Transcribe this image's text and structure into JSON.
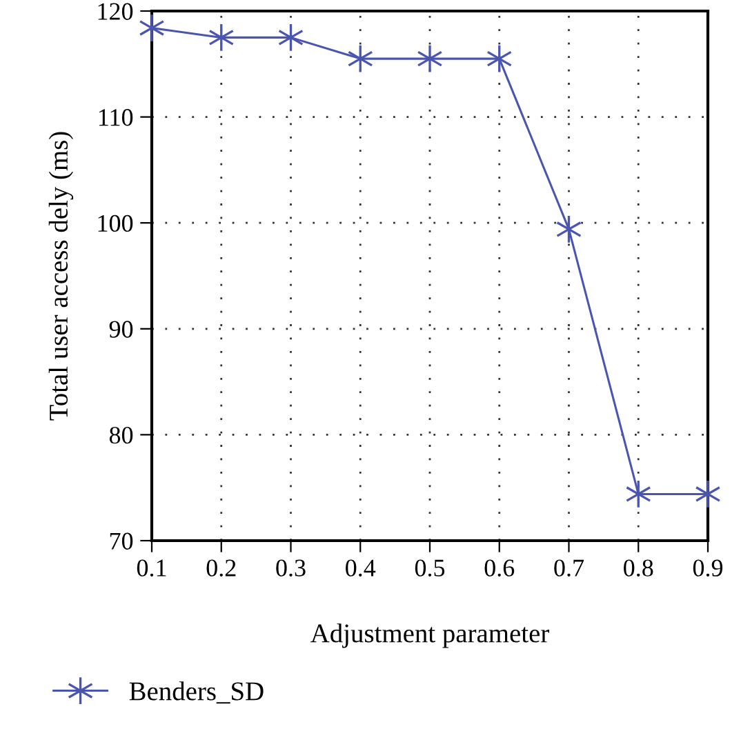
{
  "chart_data": {
    "type": "line",
    "xlabel": "Adjustment parameter",
    "ylabel": "Total user access dely (ms)",
    "x": [
      0.1,
      0.2,
      0.3,
      0.4,
      0.5,
      0.6,
      0.7,
      0.8,
      0.9
    ],
    "series": [
      {
        "name": "Benders_SD",
        "color": "#4a55b0",
        "values": [
          118.4,
          117.5,
          117.5,
          115.5,
          115.5,
          115.5,
          99.4,
          74.4,
          74.4
        ]
      }
    ],
    "xlim": [
      0.1,
      0.9
    ],
    "xticks": [
      0.1,
      0.2,
      0.3,
      0.4,
      0.5,
      0.6,
      0.7,
      0.8,
      0.9
    ],
    "ylim": [
      70,
      120
    ],
    "yticks": [
      70,
      80,
      90,
      100,
      110,
      120
    ],
    "grid": true,
    "legend": "bottom left",
    "marker": "cross",
    "line_style": "solid"
  }
}
